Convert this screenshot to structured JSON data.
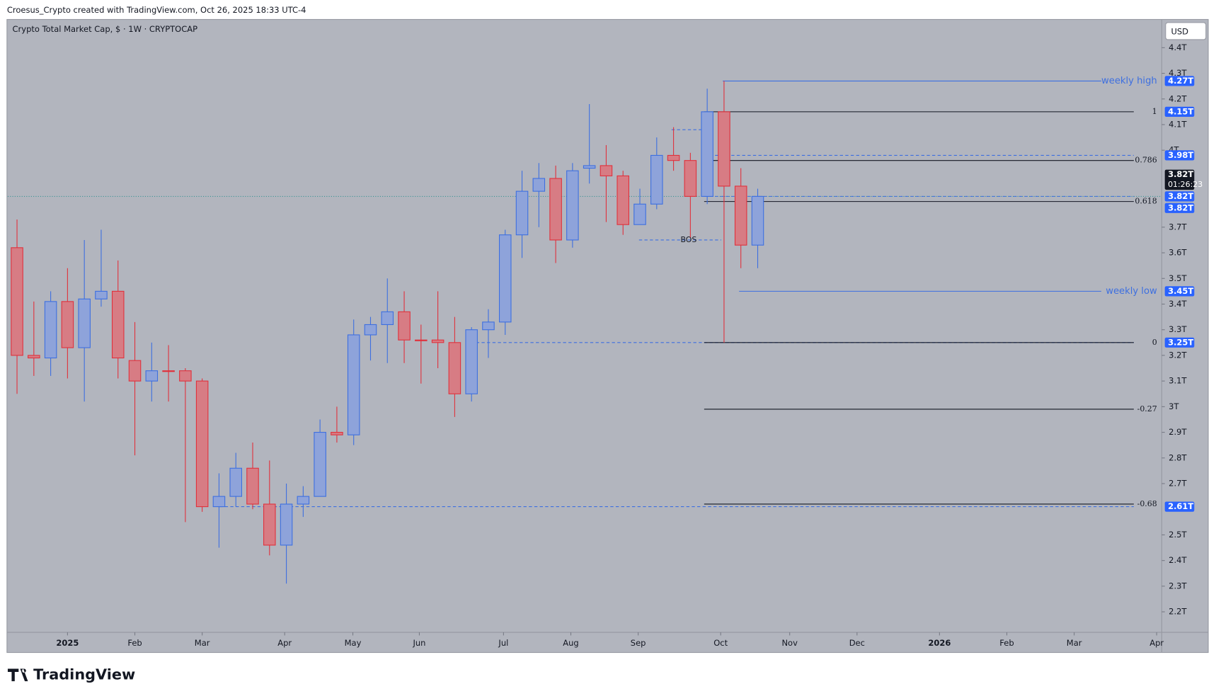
{
  "header": "Croesus_Crypto created with TradingView.com, Oct 26, 2025 18:33 UTC-4",
  "footer": "TradingView",
  "chart_data": {
    "type": "candlestick",
    "title": "Crypto Total Market Cap, $ · 1W · CRYPTOCAP",
    "currency": "USD",
    "open": [
      3.62,
      3.2,
      3.19,
      3.41,
      3.23,
      3.42,
      3.45,
      3.18,
      3.1,
      3.14,
      3.14,
      3.1,
      2.61,
      2.65,
      2.76,
      2.62,
      2.46,
      2.62,
      2.65,
      2.9,
      2.89,
      3.28,
      3.32,
      3.37,
      3.26,
      3.26,
      3.25,
      3.05,
      3.3,
      3.33,
      3.67,
      3.84,
      3.89,
      3.65,
      3.93,
      3.94,
      3.9,
      3.71,
      3.79,
      3.98,
      3.96,
      3.82,
      4.15,
      3.86,
      3.63
    ],
    "high": [
      3.73,
      3.41,
      3.45,
      3.54,
      3.65,
      3.69,
      3.57,
      3.33,
      3.25,
      3.24,
      3.15,
      3.11,
      2.74,
      2.82,
      2.86,
      2.79,
      2.7,
      2.69,
      2.95,
      3.0,
      3.34,
      3.35,
      3.5,
      3.45,
      3.32,
      3.45,
      3.35,
      3.31,
      3.38,
      3.69,
      3.92,
      3.95,
      3.94,
      3.95,
      4.18,
      4.02,
      3.92,
      3.85,
      4.05,
      4.09,
      3.99,
      4.24,
      4.27,
      3.93,
      3.85
    ],
    "low": [
      3.05,
      3.12,
      3.12,
      3.11,
      3.02,
      3.39,
      3.11,
      2.81,
      3.02,
      3.02,
      2.55,
      2.59,
      2.45,
      2.61,
      2.6,
      2.42,
      2.31,
      2.57,
      2.65,
      2.86,
      2.85,
      3.18,
      3.17,
      3.17,
      3.09,
      3.15,
      2.96,
      3.02,
      3.19,
      3.28,
      3.58,
      3.7,
      3.56,
      3.62,
      3.87,
      3.72,
      3.67,
      3.71,
      3.77,
      3.92,
      3.66,
      3.79,
      3.25,
      3.54,
      3.54
    ],
    "close": [
      3.2,
      3.19,
      3.41,
      3.23,
      3.42,
      3.45,
      3.19,
      3.1,
      3.14,
      3.14,
      3.1,
      2.61,
      2.65,
      2.76,
      2.62,
      2.46,
      2.62,
      2.65,
      2.9,
      2.89,
      3.28,
      3.32,
      3.37,
      3.26,
      3.26,
      3.25,
      3.05,
      3.3,
      3.33,
      3.67,
      3.84,
      3.89,
      3.65,
      3.92,
      3.94,
      3.9,
      3.71,
      3.79,
      3.98,
      3.96,
      3.82,
      4.15,
      3.86,
      3.63,
      3.82
    ],
    "up_color": "#3d6fe0",
    "up_fill": "#8ea3da",
    "down_color": "#e0313c",
    "down_fill": "#d77c84",
    "xlim": [
      -0.55,
      68
    ],
    "xticks": [
      {
        "value": 3,
        "label": "2025"
      },
      {
        "value": 7,
        "label": "Feb"
      },
      {
        "value": 11,
        "label": "Mar"
      },
      {
        "value": 15.9,
        "label": "Apr"
      },
      {
        "value": 19.95,
        "label": "May"
      },
      {
        "value": 23.9,
        "label": "Jun"
      },
      {
        "value": 28.9,
        "label": "Jul"
      },
      {
        "value": 32.9,
        "label": "Aug"
      },
      {
        "value": 36.9,
        "label": "Sep"
      },
      {
        "value": 41.8,
        "label": "Oct"
      },
      {
        "value": 45.9,
        "label": "Nov"
      },
      {
        "value": 49.9,
        "label": "Dec"
      },
      {
        "value": 54.8,
        "label": "2026"
      },
      {
        "value": 58.8,
        "label": "Feb"
      },
      {
        "value": 62.8,
        "label": "Mar"
      },
      {
        "value": 67.7,
        "label": "Apr"
      }
    ],
    "ylim": [
      2.12,
      4.51
    ],
    "yticks": [
      {
        "value": 4.4,
        "label": "4.4T"
      },
      {
        "value": 4.3,
        "label": "4.3T"
      },
      {
        "value": 4.2,
        "label": "4.2T"
      },
      {
        "value": 4.1,
        "label": "4.1T"
      },
      {
        "value": 4.0,
        "label": "4T"
      },
      {
        "value": 3.7,
        "label": "3.7T"
      },
      {
        "value": 3.6,
        "label": "3.6T"
      },
      {
        "value": 3.5,
        "label": "3.5T"
      },
      {
        "value": 3.4,
        "label": "3.4T"
      },
      {
        "value": 3.3,
        "label": "3.3T"
      },
      {
        "value": 3.2,
        "label": "3.2T"
      },
      {
        "value": 3.1,
        "label": "3.1T"
      },
      {
        "value": 3.0,
        "label": "3T"
      },
      {
        "value": 2.9,
        "label": "2.9T"
      },
      {
        "value": 2.8,
        "label": "2.8T"
      },
      {
        "value": 2.7,
        "label": "2.7T"
      },
      {
        "value": 2.5,
        "label": "2.5T"
      },
      {
        "value": 2.4,
        "label": "2.4T"
      },
      {
        "value": 2.3,
        "label": "2.3T"
      },
      {
        "value": 2.2,
        "label": "2.2T"
      }
    ],
    "fib_levels": [
      {
        "value": 4.15,
        "label": "1"
      },
      {
        "value": 3.96,
        "label": "0.786"
      },
      {
        "value": 3.8,
        "label": "0.618"
      },
      {
        "value": 3.25,
        "label": "0"
      },
      {
        "value": 2.99,
        "label": "-0.27"
      },
      {
        "value": 2.62,
        "label": "-0.68"
      }
    ],
    "weekly_high": {
      "value": 4.27,
      "label": "weekly high"
    },
    "weekly_low": {
      "value": 3.45,
      "label": "weekly low"
    },
    "bos": {
      "value": 3.65,
      "label": "BOS"
    },
    "dashed_levels": [
      3.98,
      3.82,
      3.25,
      2.61,
      4.08
    ],
    "current_price": 3.82,
    "price_labels": [
      {
        "value": 4.27,
        "label": "4.27T"
      },
      {
        "value": 4.15,
        "label": "4.15T"
      },
      {
        "value": 3.98,
        "label": "3.98T"
      },
      {
        "value": 3.82,
        "label": "3.82T",
        "countdown": "01:26:23"
      },
      {
        "value": 3.82,
        "label": "3.82T"
      },
      {
        "value": 3.82,
        "label": "3.82T"
      },
      {
        "value": 3.45,
        "label": "3.45T"
      },
      {
        "value": 3.25,
        "label": "3.25T"
      },
      {
        "value": 2.61,
        "label": "2.61T"
      }
    ]
  }
}
